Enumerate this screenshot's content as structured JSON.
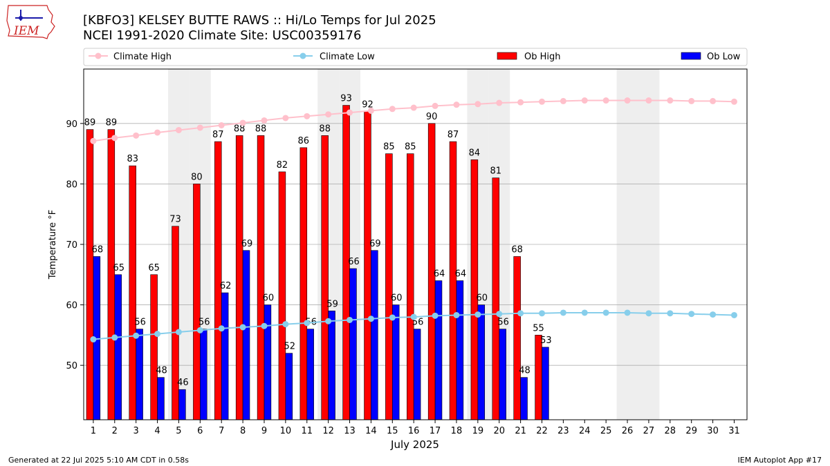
{
  "header": {
    "title_line1": "[KBFO3] KELSEY BUTTE RAWS :: Hi/Lo Temps for Jul 2025",
    "title_line2": "NCEI 1991-2020 Climate Site: USC00359176",
    "logo_text": "IEM"
  },
  "footer": {
    "left": "Generated at 22 Jul 2025 5:10 AM CDT in 0.58s",
    "right": "IEM Autoplot App #17"
  },
  "colors": {
    "ob_high": "#ff0000",
    "ob_low": "#0000ff",
    "climate_high": "#ffc0cb",
    "climate_low": "#87ceeb",
    "weekend_shade": "#eeeeee",
    "grid": "#b0b0b0",
    "logo": "#cc2222"
  },
  "chart_data": {
    "type": "bar",
    "xlabel": "July 2025",
    "ylabel": "Temperature °F",
    "ylim": [
      41,
      99
    ],
    "yticks": [
      50,
      60,
      70,
      80,
      90
    ],
    "grid": "horizontal",
    "legend_position": "top",
    "shaded_days": [
      5,
      6,
      12,
      13,
      19,
      20,
      26,
      27
    ],
    "categories": [
      1,
      2,
      3,
      4,
      5,
      6,
      7,
      8,
      9,
      10,
      11,
      12,
      13,
      14,
      15,
      16,
      17,
      18,
      19,
      20,
      21,
      22,
      23,
      24,
      25,
      26,
      27,
      28,
      29,
      30,
      31
    ],
    "series": [
      {
        "name": "Climate High",
        "kind": "line",
        "values": [
          87.1,
          87.6,
          88.0,
          88.5,
          88.9,
          89.3,
          89.7,
          90.1,
          90.5,
          90.9,
          91.2,
          91.5,
          91.8,
          92.1,
          92.4,
          92.6,
          92.9,
          93.1,
          93.2,
          93.4,
          93.5,
          93.6,
          93.7,
          93.8,
          93.8,
          93.8,
          93.8,
          93.8,
          93.7,
          93.7,
          93.6
        ]
      },
      {
        "name": "Climate Low",
        "kind": "line",
        "values": [
          54.3,
          54.6,
          54.9,
          55.2,
          55.5,
          55.8,
          56.1,
          56.3,
          56.5,
          56.8,
          57.0,
          57.3,
          57.5,
          57.7,
          57.9,
          58.0,
          58.2,
          58.3,
          58.4,
          58.5,
          58.6,
          58.6,
          58.7,
          58.7,
          58.7,
          58.7,
          58.6,
          58.6,
          58.5,
          58.4,
          58.3
        ]
      },
      {
        "name": "Ob High",
        "kind": "bar",
        "values": [
          89,
          89,
          83,
          65,
          73,
          80,
          87,
          88,
          88,
          82,
          86,
          88,
          93,
          92,
          85,
          85,
          90,
          87,
          84,
          81,
          68,
          55,
          null,
          null,
          null,
          null,
          null,
          null,
          null,
          null,
          null
        ]
      },
      {
        "name": "Ob Low",
        "kind": "bar",
        "values": [
          68,
          65,
          56,
          48,
          46,
          56,
          62,
          69,
          60,
          52,
          56,
          59,
          66,
          69,
          60,
          56,
          64,
          64,
          60,
          56,
          48,
          53,
          null,
          null,
          null,
          null,
          null,
          null,
          null,
          null,
          null
        ]
      }
    ]
  }
}
